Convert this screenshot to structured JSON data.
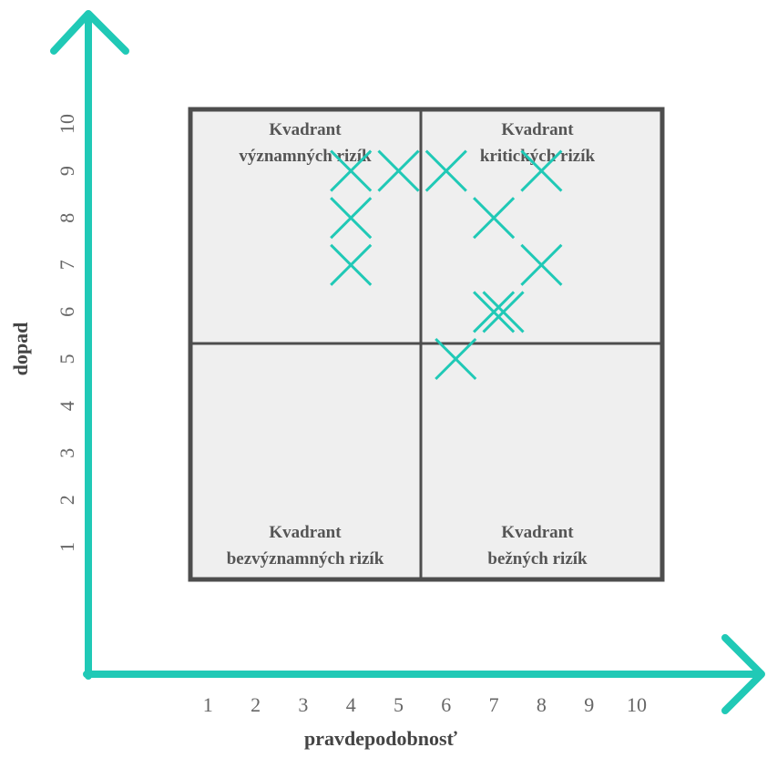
{
  "colors": {
    "accent": "#20C9B6",
    "box_fill": "#EFEFEF",
    "box_stroke": "#4D4D4D",
    "text": "#555555"
  },
  "chart_data": {
    "type": "scatter",
    "title": "",
    "xlabel": "pravdepodobnosť",
    "ylabel": "dopad",
    "xlim": [
      0,
      11
    ],
    "ylim": [
      0,
      11
    ],
    "x_ticks": [
      "1",
      "2",
      "3",
      "4",
      "5",
      "6",
      "7",
      "8",
      "9",
      "10"
    ],
    "y_ticks": [
      "1",
      "2",
      "3",
      "4",
      "5",
      "6",
      "7",
      "8",
      "9",
      "10"
    ],
    "grid": false,
    "marker": "x",
    "points": [
      {
        "x": 4,
        "y": 9
      },
      {
        "x": 5,
        "y": 9
      },
      {
        "x": 6,
        "y": 9
      },
      {
        "x": 8,
        "y": 9
      },
      {
        "x": 4,
        "y": 8
      },
      {
        "x": 7,
        "y": 8
      },
      {
        "x": 4,
        "y": 7
      },
      {
        "x": 8,
        "y": 7
      },
      {
        "x": 7,
        "y": 6
      },
      {
        "x": 7.2,
        "y": 6
      },
      {
        "x": 6.2,
        "y": 5
      }
    ],
    "quadrants": [
      {
        "position": "top-left",
        "lines": [
          "Kvadrant",
          "významných rizík"
        ]
      },
      {
        "position": "top-right",
        "lines": [
          "Kvadrant",
          "kritických rizík"
        ]
      },
      {
        "position": "bottom-left",
        "lines": [
          "Kvadrant",
          "bezvýznamných rizík"
        ]
      },
      {
        "position": "bottom-right",
        "lines": [
          "Kvadrant",
          "bežných rizík"
        ]
      }
    ]
  }
}
